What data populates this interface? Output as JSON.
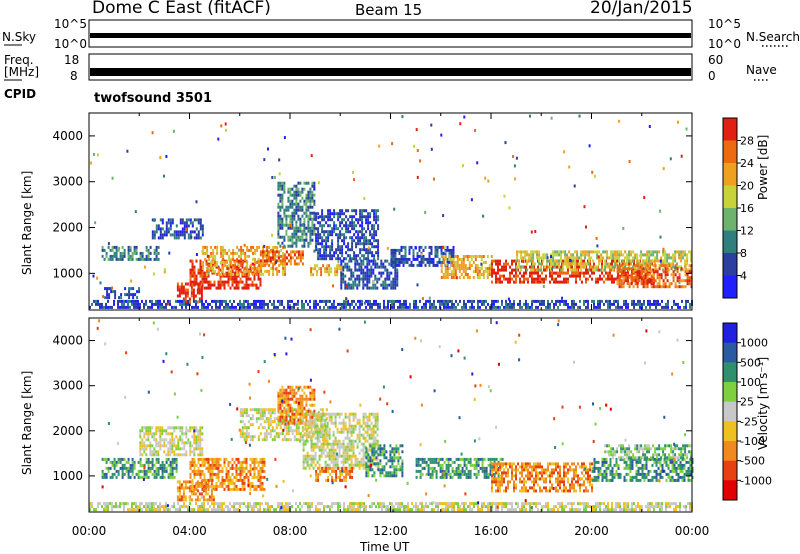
{
  "header": {
    "station": "Dome C East (fitACF)",
    "beam": "Beam 15",
    "date": "20/Jan/2015"
  },
  "top_panels": {
    "nsky_label": "N.Sky",
    "nsky_ticks": [
      "10^5",
      "10^0"
    ],
    "nsearch_label": "N.Search",
    "nsearch_ticks": [
      "10^5",
      "10^0"
    ],
    "freq_label": "Freq.",
    "freq_unit": "[MHz]",
    "freq_ticks": [
      "18",
      "8"
    ],
    "nave_label": "Nave",
    "nave_ticks": [
      "60",
      "0"
    ],
    "cpid_label": "CPID",
    "cpid_value": "twofsound 3501"
  },
  "chart_data": [
    {
      "type": "heatmap",
      "name": "power",
      "ylabel": "Slant Range [km]",
      "yticks": [
        1000,
        2000,
        3000,
        4000
      ],
      "ylim": [
        200,
        4500
      ],
      "xlim_hours": [
        0,
        24
      ],
      "colorbar_label": "Power [dB]",
      "colorbar_ticks": [
        "28",
        "24",
        "20",
        "16",
        "12",
        "8",
        "4"
      ],
      "colors": [
        "#2020ff",
        "#2a3fa0",
        "#2f7f7f",
        "#6db36d",
        "#c8d23a",
        "#f0a020",
        "#ec6a10",
        "#e02010"
      ],
      "bands": [
        {
          "t0": 0.5,
          "t1": 2.8,
          "r0": 1300,
          "r1": 1600,
          "level": 2
        },
        {
          "t0": 0.6,
          "t1": 2.0,
          "r0": 500,
          "r1": 700,
          "level": 1
        },
        {
          "t0": 2.5,
          "t1": 4.5,
          "r0": 1800,
          "r1": 2200,
          "level": 1
        },
        {
          "t0": 3.5,
          "t1": 4.5,
          "r0": 400,
          "r1": 800,
          "level": 7
        },
        {
          "t0": 4.0,
          "t1": 6.8,
          "r0": 700,
          "r1": 1300,
          "level": 7
        },
        {
          "t0": 4.5,
          "t1": 7.8,
          "r0": 1000,
          "r1": 1600,
          "level": 5
        },
        {
          "t0": 6.8,
          "t1": 8.5,
          "r0": 1200,
          "r1": 1500,
          "level": 6
        },
        {
          "t0": 7.5,
          "t1": 9.0,
          "r0": 1600,
          "r1": 3000,
          "level": 2
        },
        {
          "t0": 8.8,
          "t1": 10.2,
          "r0": 1000,
          "r1": 1200,
          "level": 5
        },
        {
          "t0": 9.0,
          "t1": 11.5,
          "r0": 1300,
          "r1": 2400,
          "level": 1
        },
        {
          "t0": 10.0,
          "t1": 12.3,
          "r0": 700,
          "r1": 1300,
          "level": 1
        },
        {
          "t0": 12.0,
          "t1": 14.5,
          "r0": 1200,
          "r1": 1600,
          "level": 1
        },
        {
          "t0": 14.0,
          "t1": 16.0,
          "r0": 900,
          "r1": 1400,
          "level": 5
        },
        {
          "t0": 16.0,
          "t1": 22.5,
          "r0": 800,
          "r1": 1300,
          "level": 7
        },
        {
          "t0": 17.0,
          "t1": 24.0,
          "r0": 1100,
          "r1": 1500,
          "level": 4
        },
        {
          "t0": 21.0,
          "t1": 24.0,
          "r0": 700,
          "r1": 1200,
          "level": 6
        },
        {
          "t0": 0.0,
          "t1": 24.0,
          "r0": 250,
          "r1": 420,
          "level": 1
        }
      ]
    },
    {
      "type": "heatmap",
      "name": "velocity",
      "ylabel": "Slant Range [km]",
      "xlabel": "Time UT",
      "xticks": [
        "00:00",
        "04:00",
        "08:00",
        "12:00",
        "16:00",
        "20:00",
        "00:00"
      ],
      "yticks": [
        1000,
        2000,
        3000,
        4000
      ],
      "ylim": [
        200,
        4500
      ],
      "xlim_hours": [
        0,
        24
      ],
      "colorbar_label": "Velocity [m s⁻¹]",
      "colorbar_ticks": [
        "1000",
        "500",
        "100",
        "25",
        "-25",
        "-100",
        "-500",
        "-1000"
      ],
      "colors": [
        "#2020e0",
        "#2a5aa0",
        "#2f8f6f",
        "#7fd040",
        "#c8c8c8",
        "#f0c020",
        "#f08a20",
        "#e84010",
        "#e00000"
      ],
      "bands": [
        {
          "t0": 0.5,
          "t1": 3.5,
          "r0": 1000,
          "r1": 1400,
          "level": 2
        },
        {
          "t0": 2.0,
          "t1": 4.5,
          "r0": 1500,
          "r1": 2100,
          "level": 4
        },
        {
          "t0": 3.5,
          "t1": 5.0,
          "r0": 500,
          "r1": 900,
          "level": 6
        },
        {
          "t0": 4.0,
          "t1": 7.0,
          "r0": 700,
          "r1": 1400,
          "level": 6
        },
        {
          "t0": 6.0,
          "t1": 9.5,
          "r0": 1800,
          "r1": 2500,
          "level": 4
        },
        {
          "t0": 7.5,
          "t1": 9.0,
          "r0": 2200,
          "r1": 3000,
          "level": 6
        },
        {
          "t0": 8.5,
          "t1": 11.5,
          "r0": 1200,
          "r1": 2400,
          "level": 4
        },
        {
          "t0": 9.0,
          "t1": 10.5,
          "r0": 900,
          "r1": 1200,
          "level": 6
        },
        {
          "t0": 11.0,
          "t1": 12.5,
          "r0": 1000,
          "r1": 1700,
          "level": 2
        },
        {
          "t0": 13.0,
          "t1": 16.5,
          "r0": 1000,
          "r1": 1400,
          "level": 2
        },
        {
          "t0": 16.0,
          "t1": 20.0,
          "r0": 700,
          "r1": 1300,
          "level": 6
        },
        {
          "t0": 20.0,
          "t1": 24.0,
          "r0": 900,
          "r1": 1400,
          "level": 2
        },
        {
          "t0": 20.5,
          "t1": 24.0,
          "r0": 1400,
          "r1": 1700,
          "level": 3
        },
        {
          "t0": 0.0,
          "t1": 24.0,
          "r0": 250,
          "r1": 420,
          "level": 4
        }
      ]
    }
  ]
}
